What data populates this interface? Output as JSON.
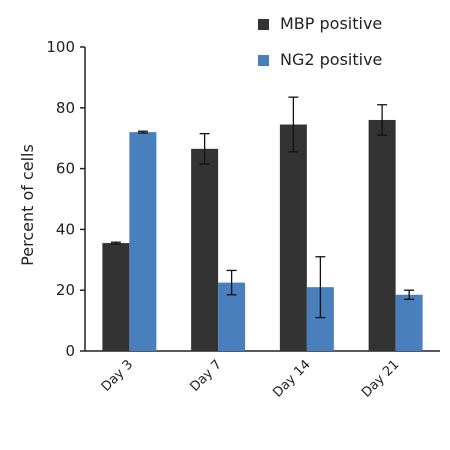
{
  "chart_data": {
    "type": "bar",
    "title": "",
    "xlabel": "",
    "ylabel": "Percent of cells",
    "ylim": [
      0,
      100
    ],
    "yticks": [
      0,
      20,
      40,
      60,
      80,
      100
    ],
    "categories": [
      "Day 3",
      "Day 7",
      "Day 14",
      "Day 21"
    ],
    "series": [
      {
        "name": "MBP positive",
        "color": "#333333",
        "values": [
          35.5,
          66.5,
          74.5,
          76
        ],
        "errors": [
          0.3,
          5,
          9,
          5
        ]
      },
      {
        "name": "NG2 positive",
        "color": "#4a7fbd",
        "values": [
          72,
          22.5,
          21,
          18.5
        ],
        "errors": [
          0.3,
          4,
          10,
          1.5
        ]
      }
    ],
    "legend_position": "top-right",
    "grid": false
  }
}
